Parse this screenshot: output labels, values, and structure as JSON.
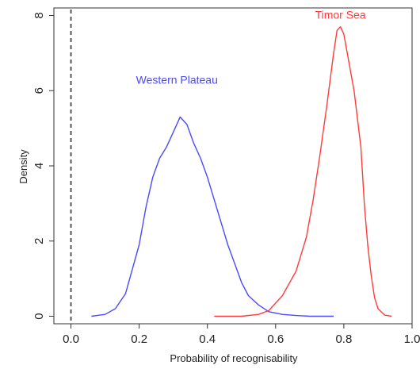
{
  "chart_data": {
    "type": "line",
    "xlabel": "Probability of recognisability",
    "ylabel": "Density",
    "xlim": [
      -0.05,
      1.0
    ],
    "ylim": [
      -0.2,
      8.2
    ],
    "x_ticks": [
      0.0,
      0.2,
      0.4,
      0.6,
      0.8,
      1.0
    ],
    "x_tick_labels": [
      "0.0",
      "0.2",
      "0.4",
      "0.6",
      "0.8",
      "1.0"
    ],
    "y_ticks": [
      0,
      2,
      4,
      6,
      8
    ],
    "y_tick_labels": [
      "0",
      "2",
      "4",
      "6",
      "8"
    ],
    "grid": false,
    "reference_line": {
      "x": 0.0,
      "style": "dashed"
    },
    "series": [
      {
        "name": "Western Plateau",
        "color": "#4a4aff",
        "x": [
          0.06,
          0.1,
          0.13,
          0.16,
          0.2,
          0.22,
          0.24,
          0.26,
          0.28,
          0.3,
          0.32,
          0.34,
          0.36,
          0.38,
          0.4,
          0.42,
          0.44,
          0.46,
          0.48,
          0.5,
          0.52,
          0.55,
          0.58,
          0.62,
          0.66,
          0.7,
          0.77
        ],
        "y": [
          0.0,
          0.05,
          0.2,
          0.6,
          1.9,
          2.9,
          3.7,
          4.2,
          4.5,
          4.9,
          5.3,
          5.1,
          4.6,
          4.2,
          3.7,
          3.1,
          2.5,
          1.9,
          1.4,
          0.9,
          0.55,
          0.3,
          0.12,
          0.05,
          0.02,
          0.0,
          0.0
        ]
      },
      {
        "name": "Timor Sea",
        "color": "#ff3b3b",
        "x": [
          0.42,
          0.5,
          0.55,
          0.58,
          0.62,
          0.66,
          0.69,
          0.71,
          0.73,
          0.75,
          0.77,
          0.78,
          0.79,
          0.8,
          0.81,
          0.83,
          0.85,
          0.86,
          0.87,
          0.88,
          0.89,
          0.9,
          0.92,
          0.94
        ],
        "y": [
          0.0,
          0.0,
          0.05,
          0.15,
          0.55,
          1.2,
          2.1,
          3.1,
          4.3,
          5.6,
          7.0,
          7.6,
          7.7,
          7.5,
          7.0,
          6.0,
          4.5,
          3.0,
          1.9,
          1.1,
          0.5,
          0.2,
          0.03,
          0.0
        ]
      }
    ]
  }
}
